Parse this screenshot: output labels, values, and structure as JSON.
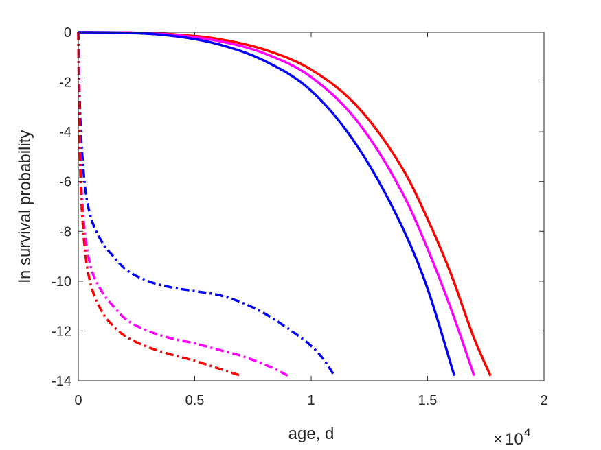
{
  "chart_data": {
    "type": "line",
    "xlabel": "age, d",
    "ylabel": "ln survival probability",
    "x_exponent": {
      "base": "10",
      "power": "4"
    },
    "xlim": [
      0,
      20000
    ],
    "ylim": [
      -14,
      0
    ],
    "xticks": [
      0,
      5000,
      10000,
      15000,
      20000
    ],
    "xtick_labels": [
      "0",
      "0.5",
      "1",
      "1.5",
      "2"
    ],
    "yticks": [
      0,
      -2,
      -4,
      -6,
      -8,
      -10,
      -12,
      -14
    ],
    "ytick_labels": [
      "0",
      "-2",
      "-4",
      "-6",
      "-8",
      "-10",
      "-12",
      "-14"
    ],
    "grid": false,
    "series": [
      {
        "color": "#ff0000",
        "style": "solid",
        "x": [
          0,
          2000,
          4000,
          6000,
          8000,
          10000,
          12000,
          14000,
          15000,
          16000,
          17000,
          17700
        ],
        "y": [
          0,
          -0.01,
          -0.08,
          -0.27,
          -0.7,
          -1.5,
          -3.0,
          -5.6,
          -7.5,
          -9.7,
          -12.3,
          -13.8
        ]
      },
      {
        "color": "#ff00ff",
        "style": "solid",
        "x": [
          0,
          2000,
          4000,
          6000,
          8000,
          10000,
          12000,
          14000,
          15000,
          16000,
          17000
        ],
        "y": [
          0,
          -0.01,
          -0.1,
          -0.35,
          -0.85,
          -1.8,
          -3.6,
          -6.6,
          -8.7,
          -11.1,
          -13.8
        ]
      },
      {
        "color": "#0000ff",
        "style": "solid",
        "x": [
          0,
          2000,
          4000,
          6000,
          8000,
          10000,
          12000,
          14000,
          15000,
          16150
        ],
        "y": [
          0,
          -0.02,
          -0.14,
          -0.48,
          -1.15,
          -2.35,
          -4.6,
          -8.0,
          -10.3,
          -13.8
        ]
      },
      {
        "color": "#0000ff",
        "style": "dashdot",
        "x": [
          0,
          40,
          100,
          200,
          300,
          500,
          1000,
          1500,
          2000,
          3000,
          4000,
          5000,
          6000,
          7000,
          8000,
          9000,
          10000,
          10500,
          11000
        ],
        "y": [
          0,
          -2.0,
          -3.8,
          -5.3,
          -6.3,
          -7.3,
          -8.4,
          -9.0,
          -9.5,
          -10.0,
          -10.25,
          -10.4,
          -10.55,
          -10.85,
          -11.3,
          -11.9,
          -12.6,
          -13.1,
          -13.8
        ]
      },
      {
        "color": "#ff00ff",
        "style": "dashdot",
        "x": [
          0,
          40,
          100,
          200,
          300,
          500,
          1000,
          1500,
          2000,
          3000,
          4000,
          5000,
          6000,
          7000,
          8000,
          8500,
          9000
        ],
        "y": [
          0,
          -3.0,
          -5.5,
          -7.2,
          -8.2,
          -9.3,
          -10.4,
          -11.0,
          -11.5,
          -12.0,
          -12.3,
          -12.5,
          -12.75,
          -13.0,
          -13.35,
          -13.55,
          -13.8
        ]
      },
      {
        "color": "#ff0000",
        "style": "dashdot",
        "x": [
          0,
          40,
          100,
          200,
          300,
          500,
          1000,
          1500,
          2000,
          3000,
          4000,
          5000,
          6000,
          6500,
          7000
        ],
        "y": [
          0,
          -3.5,
          -6.0,
          -7.8,
          -8.9,
          -10.0,
          -11.2,
          -11.8,
          -12.2,
          -12.65,
          -12.95,
          -13.2,
          -13.5,
          -13.65,
          -13.8
        ]
      }
    ]
  }
}
